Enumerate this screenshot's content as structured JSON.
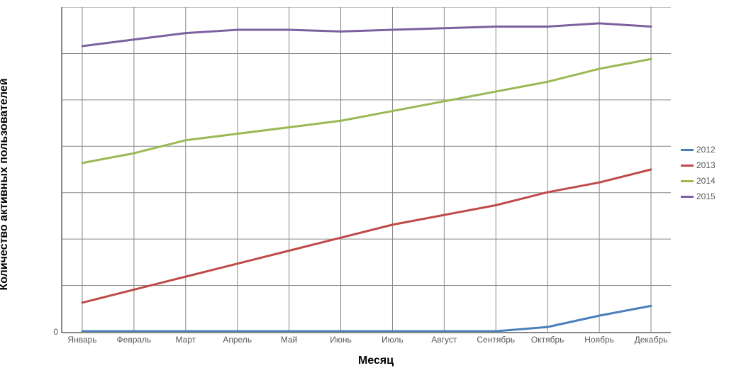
{
  "chart": {
    "type": "line",
    "y_axis_title": "Количество активных пользователей",
    "x_axis_title": "Месяц",
    "title_fontsize": 16,
    "axis_label_fontsize": 12,
    "tick_fontsize": 12,
    "legend_fontsize": 12,
    "background_color": "#ffffff",
    "plot_border_color": "#878787",
    "grid_color": "#878787",
    "grid_line_width": 1,
    "axis_color": "#878787",
    "xlim": [
      0,
      11
    ],
    "ylim": [
      0,
      100
    ],
    "y_ticks": [
      {
        "value": 0,
        "label": "0"
      }
    ],
    "y_gridlines": [
      14.29,
      28.57,
      42.86,
      57.14,
      71.43,
      85.71,
      100
    ],
    "categories": [
      "Январь",
      "Февраль",
      "Март",
      "Апрель",
      "Май",
      "Июнь",
      "Июль",
      "Август",
      "Сентябрь",
      "Октябрь",
      "Ноябрь",
      "Декабрь"
    ],
    "line_width": 3,
    "series": [
      {
        "name": "2012",
        "color": "#4a7ebb",
        "values": [
          0.2,
          0.2,
          0.2,
          0.2,
          0.2,
          0.2,
          0.2,
          0.2,
          0.2,
          1.5,
          5.0,
          8.0
        ]
      },
      {
        "name": "2013",
        "color": "#be4b48",
        "values": [
          9,
          13,
          17,
          21,
          25,
          29,
          33,
          36,
          39,
          43,
          46,
          50
        ]
      },
      {
        "name": "2014",
        "color": "#98b954",
        "values": [
          52,
          55,
          59,
          61,
          63,
          65,
          68,
          71,
          74,
          77,
          81,
          84
        ]
      },
      {
        "name": "2015",
        "color": "#7d60a0",
        "values": [
          88,
          90,
          92,
          93,
          93,
          92.5,
          93,
          93.5,
          94,
          94,
          95,
          94
        ]
      }
    ]
  }
}
